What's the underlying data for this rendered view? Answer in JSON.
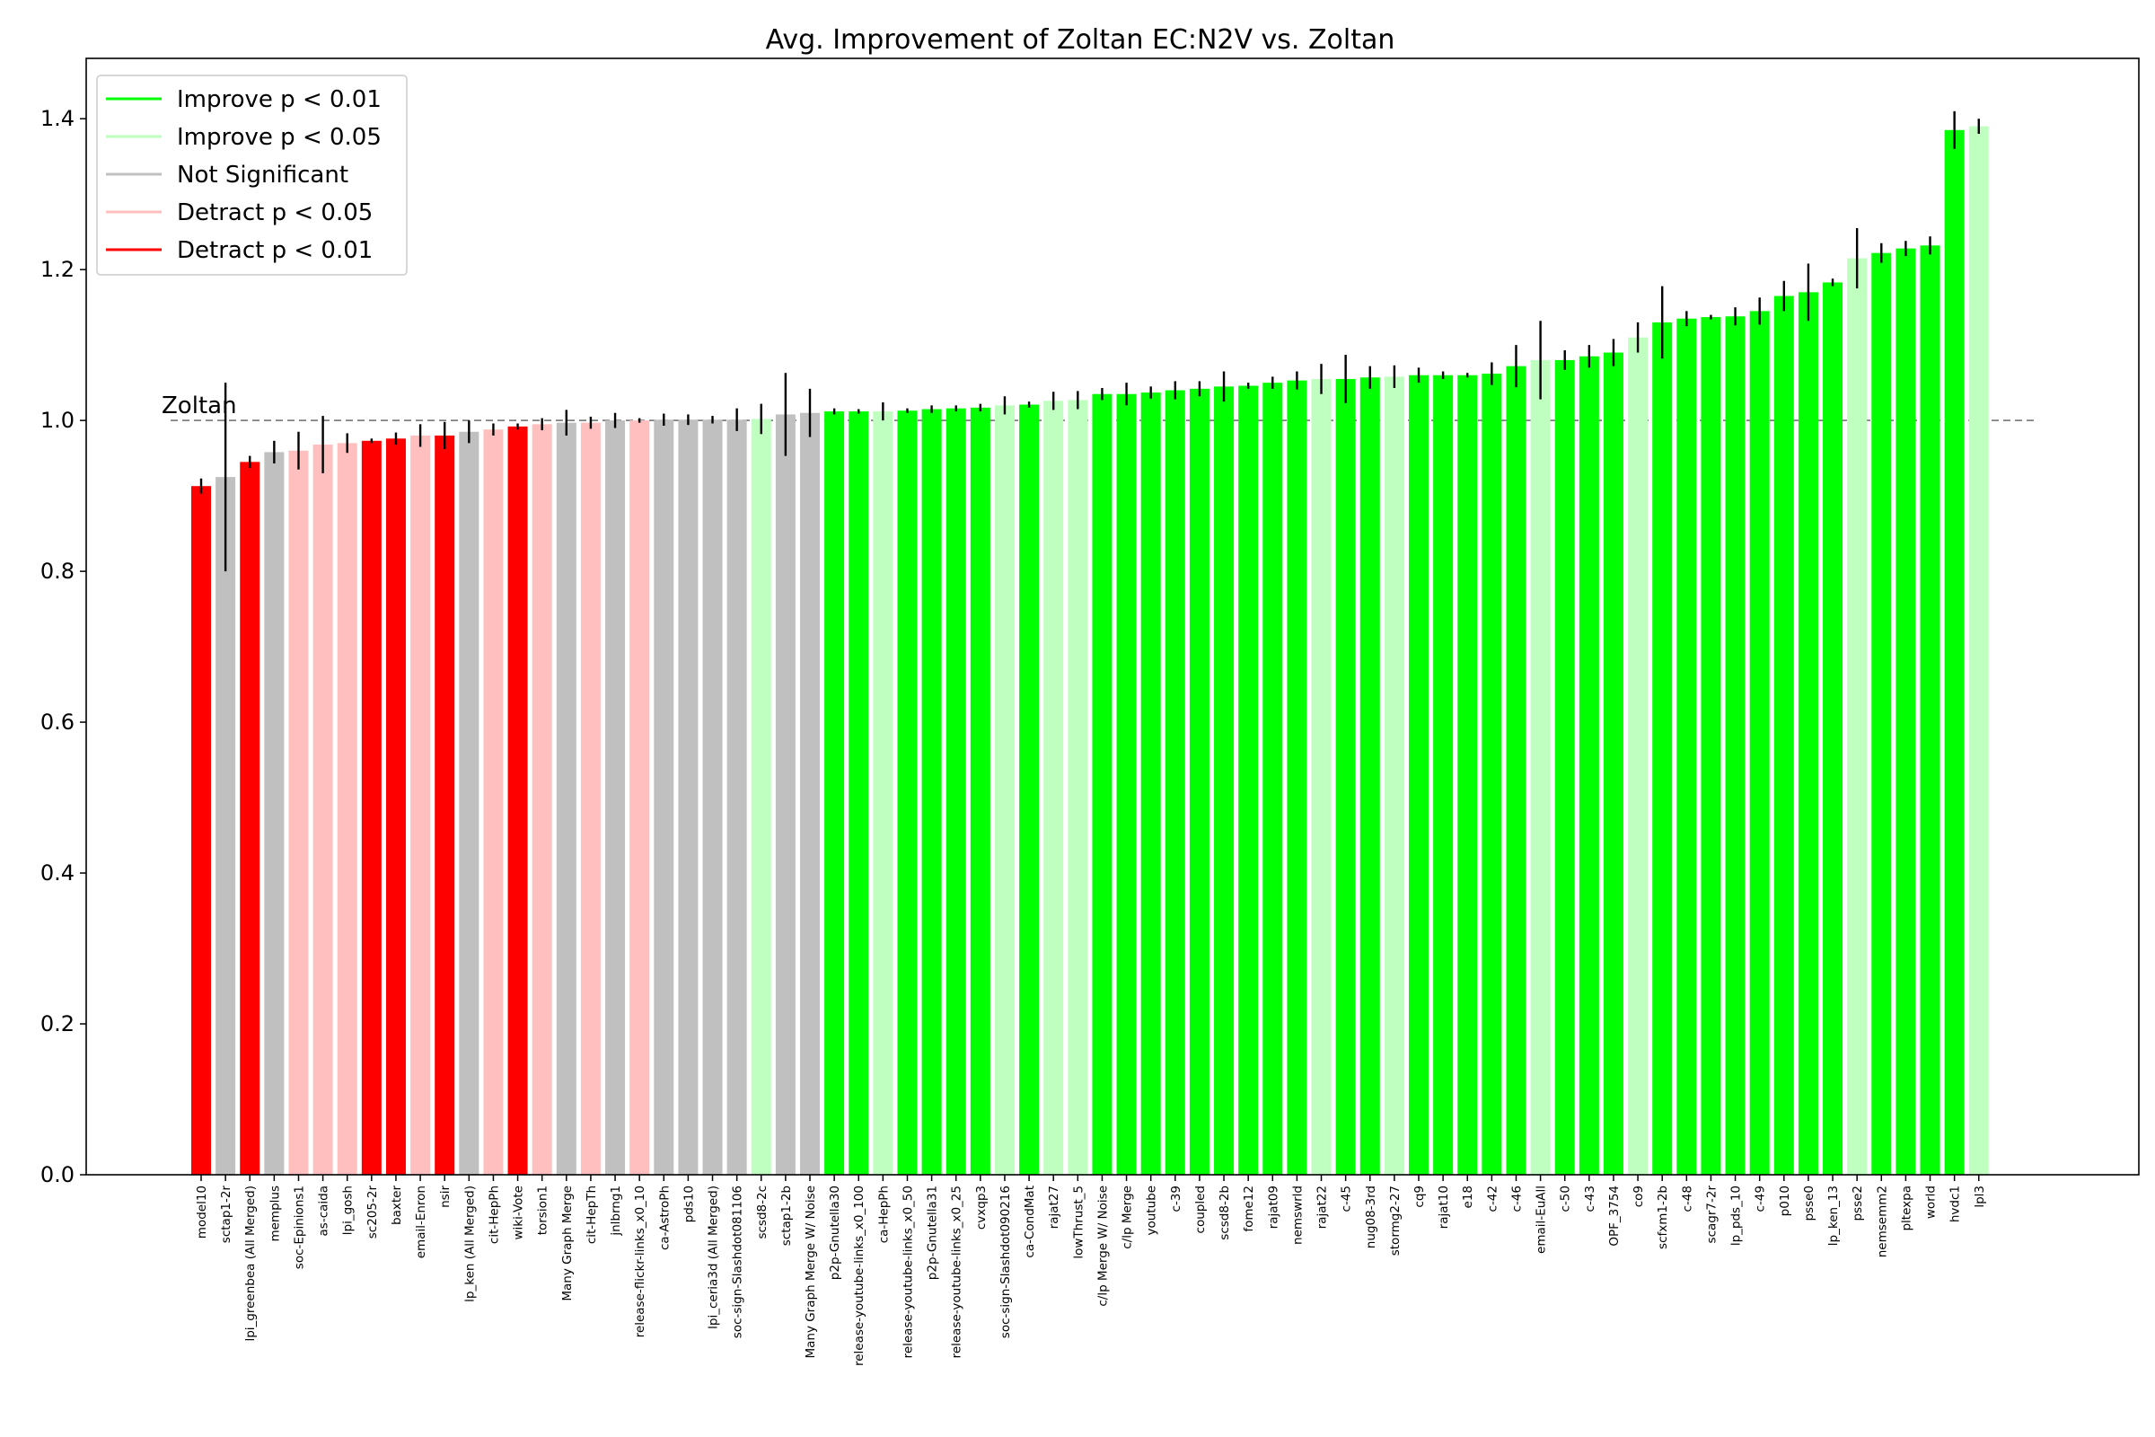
{
  "chart_data": {
    "type": "bar",
    "title": "Avg. Improvement of Zoltan EC:N2V vs. Zoltan",
    "xlabel": "",
    "ylabel": "",
    "ylim": [
      0,
      1.48
    ],
    "yticks": [
      "0.0",
      "0.2",
      "0.4",
      "0.6",
      "0.8",
      "1.0",
      "1.2",
      "1.4"
    ],
    "ytick_values": [
      0,
      0.2,
      0.4,
      0.6,
      0.8,
      1.0,
      1.2,
      1.4
    ],
    "baseline": {
      "value": 1.0,
      "label": "Zoltan",
      "color": "#808080"
    },
    "legend_position": "top-left",
    "legend": [
      {
        "label": "Improve p < 0.01",
        "color": "#00ff00",
        "key": "i1"
      },
      {
        "label": "Improve p < 0.05",
        "color": "#bfffbf",
        "key": "i5"
      },
      {
        "label": "Not Significant",
        "color": "#c0c0c0",
        "key": "ns"
      },
      {
        "label": "Detract p < 0.05",
        "color": "#ffbfbf",
        "key": "d5"
      },
      {
        "label": "Detract p < 0.01",
        "color": "#ff0000",
        "key": "d1"
      }
    ],
    "categories": [
      "model10",
      "sctap1-2r",
      "lpi_greenbea (All Merged)",
      "memplus",
      "soc-Epinions1",
      "as-caida",
      "lpi_gosh",
      "sc205-2r",
      "baxter",
      "email-Enron",
      "nsir",
      "lp_ken (All Merged)",
      "cit-HepPh",
      "wiki-Vote",
      "torsion1",
      "Many Graph Merge",
      "cit-HepTh",
      "jnlbrng1",
      "release-flickr-links_x0_10",
      "ca-AstroPh",
      "pds10",
      "lpi_ceria3d (All Merged)",
      "soc-sign-Slashdot081106",
      "scsd8-2c",
      "sctap1-2b",
      "Many Graph Merge W/ Noise",
      "p2p-Gnutella30",
      "release-youtube-links_x0_100",
      "ca-HepPh",
      "release-youtube-links_x0_50",
      "p2p-Gnutella31",
      "release-youtube-links_x0_25",
      "cvxqp3",
      "soc-sign-Slashdot090216",
      "ca-CondMat",
      "rajat27",
      "lowThrust_5",
      "c/lp Merge W/ Noise",
      "c/lp Merge",
      "youtube",
      "c-39",
      "coupled",
      "scsd8-2b",
      "fome12",
      "rajat09",
      "nemswrld",
      "rajat22",
      "c-45",
      "nug08-3rd",
      "stormg2-27",
      "cq9",
      "rajat10",
      "e18",
      "c-42",
      "c-46",
      "email-EuAll",
      "c-50",
      "c-43",
      "OPF_3754",
      "co9",
      "scfxm1-2b",
      "c-48",
      "scagr7-2r",
      "lp_pds_10",
      "c-49",
      "p010",
      "psse0",
      "lp_ken_13",
      "psse2",
      "nemsemm2",
      "pltexpa",
      "world",
      "hvdc1",
      "lpl3"
    ],
    "values": [
      0.913,
      0.925,
      0.945,
      0.958,
      0.96,
      0.968,
      0.97,
      0.973,
      0.976,
      0.98,
      0.98,
      0.985,
      0.988,
      0.992,
      0.995,
      0.997,
      0.997,
      1.0,
      1.0,
      1.001,
      1.001,
      1.001,
      1.001,
      1.002,
      1.008,
      1.01,
      1.012,
      1.012,
      1.012,
      1.013,
      1.015,
      1.016,
      1.017,
      1.02,
      1.021,
      1.026,
      1.027,
      1.035,
      1.035,
      1.037,
      1.04,
      1.042,
      1.045,
      1.046,
      1.05,
      1.053,
      1.055,
      1.055,
      1.057,
      1.058,
      1.06,
      1.06,
      1.06,
      1.062,
      1.072,
      1.08,
      1.08,
      1.085,
      1.09,
      1.11,
      1.13,
      1.135,
      1.137,
      1.138,
      1.145,
      1.165,
      1.17,
      1.183,
      1.215,
      1.222,
      1.228,
      1.232,
      1.385,
      1.39
    ],
    "errors": [
      0.01,
      0.125,
      0.008,
      0.015,
      0.025,
      0.038,
      0.013,
      0.003,
      0.008,
      0.015,
      0.018,
      0.015,
      0.008,
      0.004,
      0.008,
      0.017,
      0.008,
      0.01,
      0.003,
      0.008,
      0.007,
      0.005,
      0.015,
      0.02,
      0.055,
      0.032,
      0.004,
      0.003,
      0.012,
      0.003,
      0.005,
      0.004,
      0.005,
      0.012,
      0.004,
      0.012,
      0.012,
      0.008,
      0.015,
      0.008,
      0.012,
      0.01,
      0.02,
      0.004,
      0.008,
      0.012,
      0.02,
      0.032,
      0.015,
      0.015,
      0.01,
      0.005,
      0.003,
      0.015,
      0.028,
      0.052,
      0.013,
      0.015,
      0.018,
      0.02,
      0.048,
      0.01,
      0.003,
      0.012,
      0.018,
      0.02,
      0.038,
      0.005,
      0.04,
      0.013,
      0.01,
      0.012,
      0.025,
      0.01
    ],
    "significance": [
      "d1",
      "ns",
      "d1",
      "ns",
      "d5",
      "d5",
      "d5",
      "d1",
      "d1",
      "d5",
      "d1",
      "ns",
      "d5",
      "d1",
      "d5",
      "ns",
      "d5",
      "ns",
      "d5",
      "ns",
      "ns",
      "ns",
      "ns",
      "i5",
      "ns",
      "ns",
      "i1",
      "i1",
      "i5",
      "i1",
      "i1",
      "i1",
      "i1",
      "i5",
      "i1",
      "i5",
      "i5",
      "i1",
      "i1",
      "i1",
      "i1",
      "i1",
      "i1",
      "i1",
      "i1",
      "i1",
      "i5",
      "i1",
      "i1",
      "i5",
      "i1",
      "i1",
      "i1",
      "i1",
      "i1",
      "i5",
      "i1",
      "i1",
      "i1",
      "i5",
      "i1",
      "i1",
      "i1",
      "i1",
      "i1",
      "i1",
      "i1",
      "i1",
      "i5",
      "i1",
      "i1",
      "i1",
      "i1",
      "i5"
    ]
  }
}
